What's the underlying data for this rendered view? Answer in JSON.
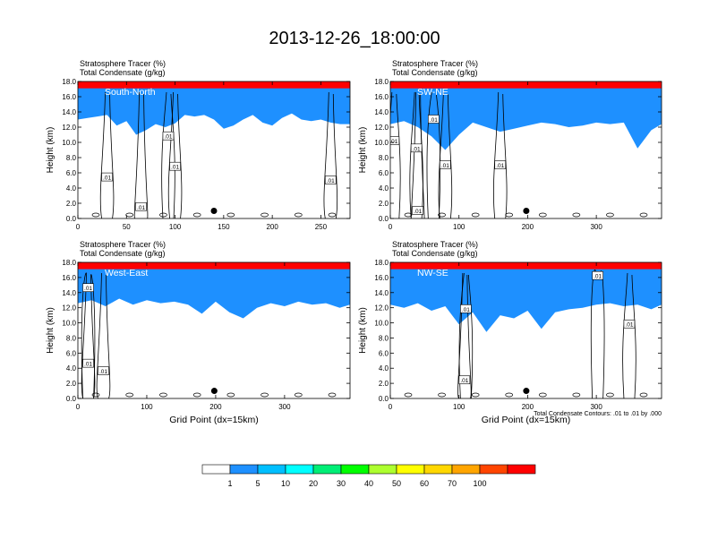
{
  "title": "2013-12-26_18:00:00",
  "panel_header": {
    "line1": "Stratosphere Tracer   (%)",
    "line2": "Total Condensate   (g/kg)"
  },
  "ylabel": "Height (km)",
  "xlabel": "Grid Point (dx=15km)",
  "contour_note": "Total Condensate Contours: .01 to .01 by .000",
  "colors": {
    "levels": [
      "#ffffff",
      "#1e90ff",
      "#00bfff",
      "#00ffff",
      "#00ee76",
      "#00ff00",
      "#adff2f",
      "#ffff00",
      "#ffd700",
      "#ffa500",
      "#ff4500",
      "#ff0000"
    ],
    "contour": "#000000",
    "marker": "#000000"
  },
  "colorbar": {
    "labels": [
      "1",
      "5",
      "10",
      "20",
      "30",
      "40",
      "50",
      "60",
      "70",
      "100"
    ]
  },
  "chart_data": [
    {
      "type": "heatmap",
      "name": "South-North",
      "xlim": [
        0,
        280
      ],
      "xticks": [
        0,
        50,
        100,
        150,
        200,
        250
      ],
      "ylim": [
        0,
        18
      ],
      "yticks": [
        "0.0",
        "2.0",
        "4.0",
        "6.0",
        "8.0",
        "10.0",
        "12.0",
        "14.0",
        "16.0",
        "18.0"
      ],
      "tracer_top": [
        [
          0,
          15.0
        ],
        [
          10,
          15.2
        ],
        [
          20,
          15.4
        ],
        [
          30,
          15.6
        ],
        [
          40,
          14.2
        ],
        [
          50,
          14.8
        ],
        [
          60,
          13.0
        ],
        [
          70,
          13.6
        ],
        [
          80,
          14.4
        ],
        [
          90,
          14.0
        ],
        [
          100,
          14.5
        ],
        [
          110,
          15.6
        ],
        [
          120,
          15.4
        ],
        [
          130,
          15.6
        ],
        [
          140,
          15.0
        ],
        [
          150,
          13.8
        ],
        [
          160,
          14.2
        ],
        [
          170,
          15.0
        ],
        [
          180,
          15.6
        ],
        [
          190,
          14.6
        ],
        [
          200,
          14.2
        ],
        [
          210,
          15.2
        ],
        [
          220,
          15.8
        ],
        [
          230,
          15.0
        ],
        [
          240,
          14.8
        ],
        [
          250,
          15.0
        ],
        [
          260,
          14.6
        ],
        [
          270,
          14.4
        ],
        [
          280,
          14.4
        ]
      ],
      "contour_labels": [
        {
          "text": ".01",
          "x": 30,
          "y": 5.4
        },
        {
          "text": ".01",
          "x": 93,
          "y": 10.8
        },
        {
          "text": ".01",
          "x": 100,
          "y": 6.8
        },
        {
          "text": ".01",
          "x": 65,
          "y": 1.5
        },
        {
          "text": ".01",
          "x": 260,
          "y": 5.0
        }
      ],
      "marker": {
        "x": 140,
        "y": 1.0
      }
    },
    {
      "type": "heatmap",
      "name": "SW-NE",
      "xlim": [
        0,
        395
      ],
      "xticks": [
        0,
        100,
        200,
        300
      ],
      "ylim": [
        0,
        18
      ],
      "yticks": [
        "0.0",
        "2.0",
        "4.0",
        "6.0",
        "8.0",
        "10.0",
        "12.0",
        "14.0",
        "16.0",
        "18.0"
      ],
      "tracer_top": [
        [
          0,
          14.4
        ],
        [
          20,
          14.8
        ],
        [
          40,
          14.0
        ],
        [
          60,
          12.8
        ],
        [
          80,
          11.0
        ],
        [
          100,
          13.0
        ],
        [
          120,
          14.6
        ],
        [
          140,
          14.0
        ],
        [
          160,
          13.4
        ],
        [
          180,
          13.8
        ],
        [
          200,
          14.2
        ],
        [
          220,
          14.6
        ],
        [
          240,
          14.4
        ],
        [
          260,
          14.0
        ],
        [
          280,
          14.2
        ],
        [
          300,
          14.6
        ],
        [
          320,
          14.4
        ],
        [
          340,
          14.6
        ],
        [
          360,
          11.2
        ],
        [
          380,
          13.6
        ],
        [
          395,
          14.4
        ]
      ],
      "contour_labels": [
        {
          "text": ".01",
          "x": 5,
          "y": 10.2
        },
        {
          "text": ".01",
          "x": 38,
          "y": 9.2
        },
        {
          "text": ".01",
          "x": 80,
          "y": 7.0
        },
        {
          "text": ".01",
          "x": 160,
          "y": 7.0
        },
        {
          "text": ".01",
          "x": 40,
          "y": 1.0
        },
        {
          "text": ".01",
          "x": 63,
          "y": 13.0
        }
      ],
      "marker": {
        "x": 198,
        "y": 1.0
      }
    },
    {
      "type": "heatmap",
      "name": "West-East",
      "xlim": [
        0,
        395
      ],
      "xticks": [
        0,
        100,
        200,
        300
      ],
      "ylim": [
        0,
        18
      ],
      "yticks": [
        "0.0",
        "2.0",
        "4.0",
        "6.0",
        "8.0",
        "10.0",
        "12.0",
        "14.0",
        "16.0",
        "18.0"
      ],
      "tracer_top": [
        [
          0,
          14.6
        ],
        [
          20,
          15.0
        ],
        [
          40,
          14.2
        ],
        [
          60,
          15.2
        ],
        [
          80,
          14.4
        ],
        [
          100,
          15.0
        ],
        [
          120,
          14.6
        ],
        [
          140,
          14.8
        ],
        [
          160,
          14.4
        ],
        [
          180,
          13.2
        ],
        [
          200,
          14.8
        ],
        [
          220,
          13.4
        ],
        [
          240,
          12.6
        ],
        [
          260,
          14.0
        ],
        [
          280,
          14.6
        ],
        [
          300,
          14.2
        ],
        [
          320,
          14.8
        ],
        [
          340,
          14.4
        ],
        [
          360,
          14.6
        ],
        [
          380,
          14.0
        ],
        [
          395,
          14.4
        ]
      ],
      "contour_labels": [
        {
          "text": ".01",
          "x": 15,
          "y": 14.6
        },
        {
          "text": ".01",
          "x": 15,
          "y": 4.6
        },
        {
          "text": ".01",
          "x": 37,
          "y": 3.6
        }
      ],
      "marker": {
        "x": 198,
        "y": 1.0
      }
    },
    {
      "type": "heatmap",
      "name": "NW-SE",
      "xlim": [
        0,
        395
      ],
      "xticks": [
        0,
        100,
        200,
        300
      ],
      "ylim": [
        0,
        18
      ],
      "yticks": [
        "0.0",
        "2.0",
        "4.0",
        "6.0",
        "8.0",
        "10.0",
        "12.0",
        "14.0",
        "16.0",
        "18.0"
      ],
      "tracer_top": [
        [
          0,
          14.4
        ],
        [
          20,
          14.0
        ],
        [
          40,
          14.6
        ],
        [
          60,
          13.6
        ],
        [
          80,
          14.2
        ],
        [
          100,
          11.8
        ],
        [
          120,
          13.4
        ],
        [
          140,
          10.8
        ],
        [
          160,
          13.0
        ],
        [
          180,
          12.6
        ],
        [
          200,
          13.6
        ],
        [
          220,
          11.2
        ],
        [
          240,
          13.4
        ],
        [
          260,
          13.8
        ],
        [
          280,
          14.0
        ],
        [
          300,
          14.4
        ],
        [
          320,
          14.6
        ],
        [
          340,
          14.2
        ],
        [
          360,
          14.4
        ],
        [
          380,
          13.8
        ],
        [
          395,
          14.4
        ]
      ],
      "contour_labels": [
        {
          "text": ".01",
          "x": 110,
          "y": 11.8
        },
        {
          "text": ".01",
          "x": 302,
          "y": 16.2
        },
        {
          "text": ".01",
          "x": 348,
          "y": 9.8
        },
        {
          "text": ".01",
          "x": 108,
          "y": 2.4
        }
      ],
      "marker": {
        "x": 198,
        "y": 1.0
      }
    }
  ]
}
